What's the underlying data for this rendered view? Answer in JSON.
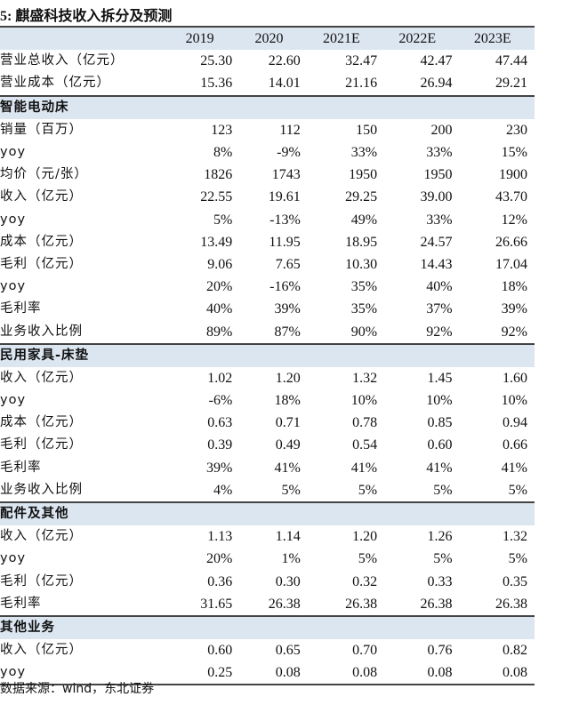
{
  "title": "5: 麒盛科技收入拆分及预测",
  "columns": [
    "2019",
    "2020",
    "2021E",
    "2022E",
    "2023E"
  ],
  "top_rows": [
    {
      "label": "营业总收入（亿元）",
      "values": [
        "25.30",
        "22.60",
        "32.47",
        "42.47",
        "47.44"
      ]
    },
    {
      "label": "营业成本（亿元）",
      "values": [
        "15.36",
        "14.01",
        "21.16",
        "26.94",
        "29.21"
      ]
    }
  ],
  "sections": [
    {
      "name": "智能电动床",
      "rows": [
        {
          "label": "销量（百万）",
          "values": [
            "123",
            "112",
            "150",
            "200",
            "230"
          ]
        },
        {
          "label": "yoy",
          "values": [
            "8%",
            "-9%",
            "33%",
            "33%",
            "15%"
          ]
        },
        {
          "label": "均价（元/张）",
          "values": [
            "1826",
            "1743",
            "1950",
            "1950",
            "1900"
          ]
        },
        {
          "label": "收入（亿元）",
          "values": [
            "22.55",
            "19.61",
            "29.25",
            "39.00",
            "43.70"
          ]
        },
        {
          "label": "yoy",
          "values": [
            "5%",
            "-13%",
            "49%",
            "33%",
            "12%"
          ]
        },
        {
          "label": "成本（亿元）",
          "values": [
            "13.49",
            "11.95",
            "18.95",
            "24.57",
            "26.66"
          ]
        },
        {
          "label": "毛利（亿元）",
          "values": [
            "9.06",
            "7.65",
            "10.30",
            "14.43",
            "17.04"
          ]
        },
        {
          "label": "yoy",
          "values": [
            "20%",
            "-16%",
            "35%",
            "40%",
            "18%"
          ]
        },
        {
          "label": "毛利率",
          "values": [
            "40%",
            "39%",
            "35%",
            "37%",
            "39%"
          ]
        },
        {
          "label": "业务收入比例",
          "values": [
            "89%",
            "87%",
            "90%",
            "92%",
            "92%"
          ]
        }
      ]
    },
    {
      "name": "民用家具-床垫",
      "rows": [
        {
          "label": "收入（亿元）",
          "values": [
            "1.02",
            "1.20",
            "1.32",
            "1.45",
            "1.60"
          ]
        },
        {
          "label": "yoy",
          "values": [
            "-6%",
            "18%",
            "10%",
            "10%",
            "10%"
          ]
        },
        {
          "label": "成本（亿元）",
          "values": [
            "0.63",
            "0.71",
            "0.78",
            "0.85",
            "0.94"
          ]
        },
        {
          "label": "毛利（亿元）",
          "values": [
            "0.39",
            "0.49",
            "0.54",
            "0.60",
            "0.66"
          ]
        },
        {
          "label": "毛利率",
          "values": [
            "39%",
            "41%",
            "41%",
            "41%",
            "41%"
          ]
        },
        {
          "label": "业务收入比例",
          "values": [
            "4%",
            "5%",
            "5%",
            "5%",
            "5%"
          ]
        }
      ]
    },
    {
      "name": "配件及其他",
      "rows": [
        {
          "label": "收入（亿元）",
          "values": [
            "1.13",
            "1.14",
            "1.20",
            "1.26",
            "1.32"
          ]
        },
        {
          "label": "yoy",
          "values": [
            "20%",
            "1%",
            "5%",
            "5%",
            "5%"
          ]
        },
        {
          "label": "毛利（亿元）",
          "values": [
            "0.36",
            "0.30",
            "0.32",
            "0.33",
            "0.35"
          ]
        },
        {
          "label": "毛利率",
          "values": [
            "31.65",
            "26.38",
            "26.38",
            "26.38",
            "26.38"
          ]
        }
      ]
    },
    {
      "name": "其他业务",
      "rows": [
        {
          "label": "收入（亿元）",
          "values": [
            "0.60",
            "0.65",
            "0.70",
            "0.76",
            "0.82"
          ]
        },
        {
          "label": "yoy",
          "values": [
            "0.25",
            "0.08",
            "0.08",
            "0.08",
            "0.08"
          ]
        }
      ]
    }
  ],
  "source": "数据来源：wind，东北证券",
  "colors": {
    "header_bg": "#dce6f1",
    "rule": "#444444"
  }
}
